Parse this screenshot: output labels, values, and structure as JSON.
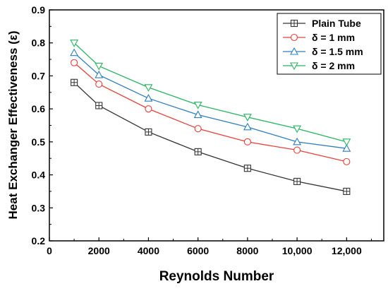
{
  "chart_data": {
    "type": "line",
    "title": "",
    "xlabel": "Reynolds Number",
    "ylabel": "Heat Exchanger Effectiveness (ε)",
    "xlim": [
      0,
      13500
    ],
    "ylim": [
      0.2,
      0.9
    ],
    "xticks": [
      0,
      2000,
      4000,
      6000,
      8000,
      10000,
      12000
    ],
    "xtick_labels": [
      "0",
      "2000",
      "4000",
      "6000",
      "8000",
      "10,000",
      "12,000"
    ],
    "yticks": [
      0.2,
      0.3,
      0.4,
      0.5,
      0.6,
      0.7,
      0.8,
      0.9
    ],
    "ytick_labels": [
      "0.2",
      "0.3",
      "0.4",
      "0.5",
      "0.6",
      "0.7",
      "0.8",
      "0.9"
    ],
    "grid": false,
    "legend_position": "top-right",
    "x": [
      1000,
      2000,
      4000,
      6000,
      8000,
      10000,
      12000
    ],
    "series": [
      {
        "name": "Plain Tube",
        "values": [
          0.68,
          0.61,
          0.53,
          0.47,
          0.42,
          0.38,
          0.35
        ],
        "color": "#333333",
        "marker": "square-plus"
      },
      {
        "name": "δ = 1 mm",
        "values": [
          0.74,
          0.675,
          0.6,
          0.54,
          0.5,
          0.475,
          0.44
        ],
        "color": "#e8413c",
        "marker": "circle"
      },
      {
        "name": "δ = 1.5 mm",
        "values": [
          0.77,
          0.703,
          0.632,
          0.582,
          0.545,
          0.5,
          0.48
        ],
        "color": "#2f7fc1",
        "marker": "triangle-up"
      },
      {
        "name": "δ = 2 mm",
        "values": [
          0.8,
          0.73,
          0.665,
          0.612,
          0.575,
          0.54,
          0.5
        ],
        "color": "#27b560",
        "marker": "triangle-down"
      }
    ]
  }
}
